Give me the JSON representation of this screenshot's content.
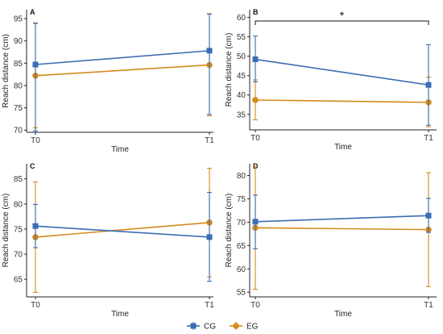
{
  "chart_data": [
    {
      "type": "line",
      "panel_label": "A",
      "xlabel": "Time",
      "ylabel": "Reach distance (cm)",
      "categories": [
        "T0",
        "T1"
      ],
      "ylim": [
        69.5,
        97
      ],
      "yticks": [
        70,
        75,
        80,
        85,
        90,
        95
      ],
      "series": [
        {
          "name": "CG",
          "values": [
            84.7,
            87.8
          ],
          "error_low": [
            69.8,
            73.5
          ],
          "error_high": [
            94.0,
            96.0
          ]
        },
        {
          "name": "EG",
          "values": [
            82.2,
            84.6
          ],
          "error_low": [
            70.5,
            73.2
          ],
          "error_high": [
            93.9,
            96.1
          ]
        }
      ]
    },
    {
      "type": "line",
      "panel_label": "B",
      "xlabel": "Time",
      "ylabel": "Reach distance (cm)",
      "categories": [
        "T0",
        "T1"
      ],
      "ylim": [
        31,
        62
      ],
      "yticks": [
        35,
        40,
        45,
        50,
        55,
        60
      ],
      "significance": "*",
      "series": [
        {
          "name": "CG",
          "values": [
            49.2,
            42.6
          ],
          "error_low": [
            43.4,
            32.2
          ],
          "error_high": [
            55.2,
            53.0
          ]
        },
        {
          "name": "EG",
          "values": [
            38.7,
            38.1
          ],
          "error_low": [
            33.6,
            31.8
          ],
          "error_high": [
            43.9,
            44.6
          ]
        }
      ]
    },
    {
      "type": "line",
      "panel_label": "C",
      "xlabel": "Time",
      "ylabel": "Reach distance (cm)",
      "categories": [
        "T0",
        "T1"
      ],
      "ylim": [
        61.5,
        88
      ],
      "yticks": [
        65,
        70,
        75,
        80,
        85
      ],
      "series": [
        {
          "name": "CG",
          "values": [
            75.6,
            73.4
          ],
          "error_low": [
            71.3,
            64.6
          ],
          "error_high": [
            79.9,
            82.3
          ]
        },
        {
          "name": "EG",
          "values": [
            73.4,
            76.3
          ],
          "error_low": [
            62.4,
            65.5
          ],
          "error_high": [
            84.4,
            87.1
          ]
        }
      ]
    },
    {
      "type": "line",
      "panel_label": "D",
      "xlabel": "Time",
      "ylabel": "Reach distance (cm)",
      "categories": [
        "T0",
        "T1"
      ],
      "ylim": [
        54,
        82.5
      ],
      "yticks": [
        55,
        60,
        65,
        70,
        75,
        80
      ],
      "series": [
        {
          "name": "CG",
          "values": [
            70.1,
            71.4
          ],
          "error_low": [
            64.3,
            67.8
          ],
          "error_high": [
            75.8,
            75.1
          ]
        },
        {
          "name": "EG",
          "values": [
            68.8,
            68.4
          ],
          "error_low": [
            55.6,
            56.2
          ],
          "error_high": [
            82.0,
            80.6
          ]
        }
      ]
    }
  ],
  "legend": {
    "position": "bottom",
    "items": [
      {
        "name": "CG",
        "color": "#3a6db4",
        "marker": "square"
      },
      {
        "name": "EG",
        "color": "#d58b1c",
        "marker": "circle"
      }
    ]
  }
}
